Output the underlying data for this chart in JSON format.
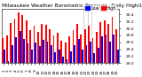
{
  "title": "Milwaukee Weather Barometric Pressure  Daily High/Low",
  "color_high": "#FF0000",
  "color_low": "#0000FF",
  "legend_high": "High",
  "legend_low": "Low",
  "background": "#FFFFFF",
  "ylim_low": 29.0,
  "ylim_high": 30.55,
  "yticks": [
    29.0,
    29.2,
    29.4,
    29.6,
    29.8,
    30.0,
    30.2,
    30.4
  ],
  "ytick_labels": [
    "29.0",
    "29.2",
    "29.4",
    "29.6",
    "29.8",
    "30.0",
    "30.2",
    "30.4"
  ],
  "highs": [
    29.72,
    29.8,
    30.15,
    30.28,
    30.45,
    30.38,
    30.22,
    29.95,
    30.08,
    29.9,
    30.12,
    30.1,
    29.98,
    29.8,
    29.88,
    29.65,
    29.6,
    29.78,
    29.95,
    30.12,
    29.82,
    29.98,
    30.08,
    29.72,
    29.9,
    30.18,
    30.22,
    30.12,
    30.32,
    29.98
  ],
  "lows": [
    29.4,
    29.05,
    29.52,
    29.75,
    29.92,
    29.7,
    29.58,
    29.38,
    29.6,
    29.48,
    29.68,
    29.62,
    29.52,
    29.32,
    29.4,
    29.18,
    29.12,
    29.35,
    29.52,
    29.7,
    29.38,
    29.52,
    29.62,
    29.28,
    29.45,
    29.78,
    29.82,
    29.62,
    29.82,
    29.4
  ],
  "n": 30,
  "vline_positions": [
    20.5,
    21.5,
    22.5
  ],
  "bar_width": 0.42,
  "fontsize_title": 4.2,
  "fontsize_tick": 3.2,
  "fontsize_legend": 3.5
}
